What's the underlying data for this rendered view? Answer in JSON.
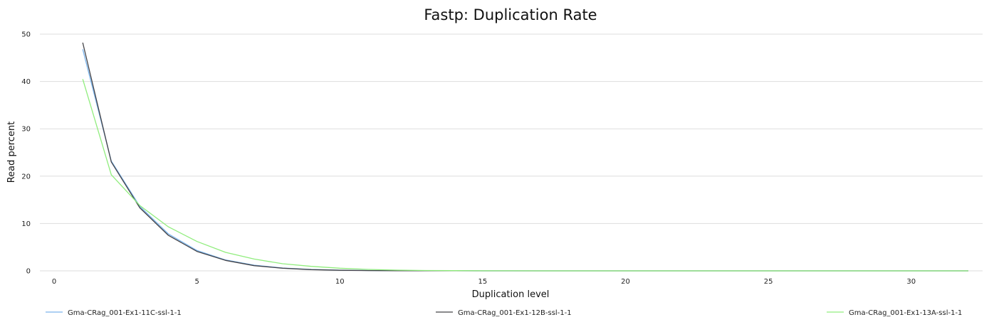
{
  "chart_data": {
    "type": "line",
    "title": "Fastp: Duplication Rate",
    "xlabel": "Duplication level",
    "ylabel": "Read percent",
    "xlim": [
      -0.5,
      32.5
    ],
    "ylim": [
      0,
      50
    ],
    "xticks": [
      0,
      5,
      10,
      15,
      20,
      25,
      30
    ],
    "yticks": [
      0,
      10,
      20,
      30,
      40,
      50
    ],
    "grid": true,
    "legend_position": "bottom",
    "x": [
      1,
      2,
      3,
      4,
      5,
      6,
      7,
      8,
      9,
      10,
      11,
      12,
      13,
      14,
      15,
      16,
      17,
      18,
      19,
      20,
      21,
      22,
      23,
      24,
      25,
      26,
      27,
      28,
      29,
      30,
      31,
      32
    ],
    "series": [
      {
        "name": "Gma-CRag_001-Ex1-11C-ssl-1-1",
        "color": "#7cb5ec",
        "values": [
          46.8,
          23.2,
          13.6,
          7.8,
          4.3,
          2.3,
          1.2,
          0.6,
          0.3,
          0.15,
          0.08,
          0.04,
          0.02,
          0.01,
          0,
          0,
          0,
          0,
          0,
          0,
          0,
          0,
          0,
          0,
          0,
          0,
          0,
          0,
          0,
          0,
          0,
          0
        ]
      },
      {
        "name": "Gma-CRag_001-Ex1-12B-ssl-1-1",
        "color": "#434348",
        "values": [
          48.2,
          23.0,
          13.3,
          7.5,
          4.1,
          2.2,
          1.1,
          0.55,
          0.25,
          0.12,
          0.06,
          0.03,
          0.01,
          0.01,
          0,
          0,
          0,
          0,
          0,
          0,
          0,
          0,
          0,
          0,
          0,
          0,
          0,
          0,
          0,
          0,
          0,
          0
        ]
      },
      {
        "name": "Gma-CRag_001-Ex1-13A-ssl-1-1",
        "color": "#90ed7d",
        "values": [
          40.5,
          20.3,
          13.8,
          9.3,
          6.2,
          3.9,
          2.5,
          1.5,
          0.95,
          0.55,
          0.3,
          0.15,
          0.08,
          0.04,
          0.02,
          0.01,
          0,
          0,
          0,
          0,
          0,
          0,
          0,
          0,
          0,
          0,
          0,
          0,
          0,
          0,
          0,
          0
        ]
      }
    ]
  }
}
